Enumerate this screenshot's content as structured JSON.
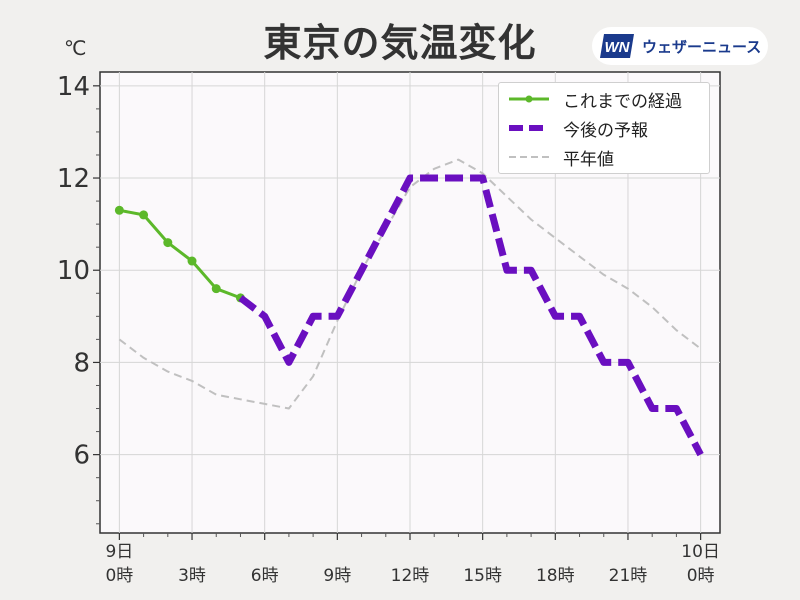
{
  "title": "東京の気温変化",
  "brand": {
    "name": "ウェザーニュース",
    "mark": "WN"
  },
  "chart_data": {
    "type": "line",
    "unit_label": "℃",
    "ylim": [
      4.3,
      14.3
    ],
    "yticks": [
      6,
      8,
      10,
      12,
      14
    ],
    "xlim": [
      -0.8,
      24.8
    ],
    "grid": true,
    "legend_position": "top-right",
    "x_ticks": [
      {
        "x": 0,
        "line1": "9日",
        "line2": "0時"
      },
      {
        "x": 3,
        "line1": "",
        "line2": "3時"
      },
      {
        "x": 6,
        "line1": "",
        "line2": "6時"
      },
      {
        "x": 9,
        "line1": "",
        "line2": "9時"
      },
      {
        "x": 12,
        "line1": "",
        "line2": "12時"
      },
      {
        "x": 15,
        "line1": "",
        "line2": "15時"
      },
      {
        "x": 18,
        "line1": "",
        "line2": "18時"
      },
      {
        "x": 21,
        "line1": "",
        "line2": "21時"
      },
      {
        "x": 24,
        "line1": "10日",
        "line2": "0時"
      }
    ],
    "series": [
      {
        "name": "これまでの経過",
        "color": "#5cb82a",
        "style": "solid-markers",
        "x": [
          0,
          1,
          2,
          3,
          4,
          5
        ],
        "y": [
          11.3,
          11.2,
          10.6,
          10.2,
          9.6,
          9.4
        ]
      },
      {
        "name": "今後の予報",
        "color": "#6a0fc0",
        "style": "dashed-thick",
        "x": [
          5,
          6,
          7,
          8,
          9,
          10,
          11,
          12,
          13,
          14,
          15,
          16,
          17,
          18,
          19,
          20,
          21,
          22,
          23,
          24
        ],
        "y": [
          9.4,
          9.0,
          8.0,
          9.0,
          9.0,
          10.0,
          11.0,
          12.0,
          12.0,
          12.0,
          12.0,
          10.0,
          10.0,
          9.0,
          9.0,
          8.0,
          8.0,
          7.0,
          7.0,
          6.0
        ]
      },
      {
        "name": "平年値",
        "color": "#c0c0c0",
        "style": "dashed-thin",
        "x": [
          0,
          1,
          2,
          3,
          4,
          5,
          6,
          7,
          8,
          9,
          10,
          11,
          12,
          13,
          14,
          15,
          16,
          17,
          18,
          19,
          20,
          21,
          22,
          23,
          24
        ],
        "y": [
          8.5,
          8.1,
          7.8,
          7.6,
          7.3,
          7.2,
          7.1,
          7.0,
          7.7,
          8.9,
          10.0,
          10.9,
          11.8,
          12.2,
          12.4,
          12.1,
          11.6,
          11.1,
          10.7,
          10.3,
          9.9,
          9.6,
          9.2,
          8.7,
          8.3
        ]
      }
    ]
  }
}
